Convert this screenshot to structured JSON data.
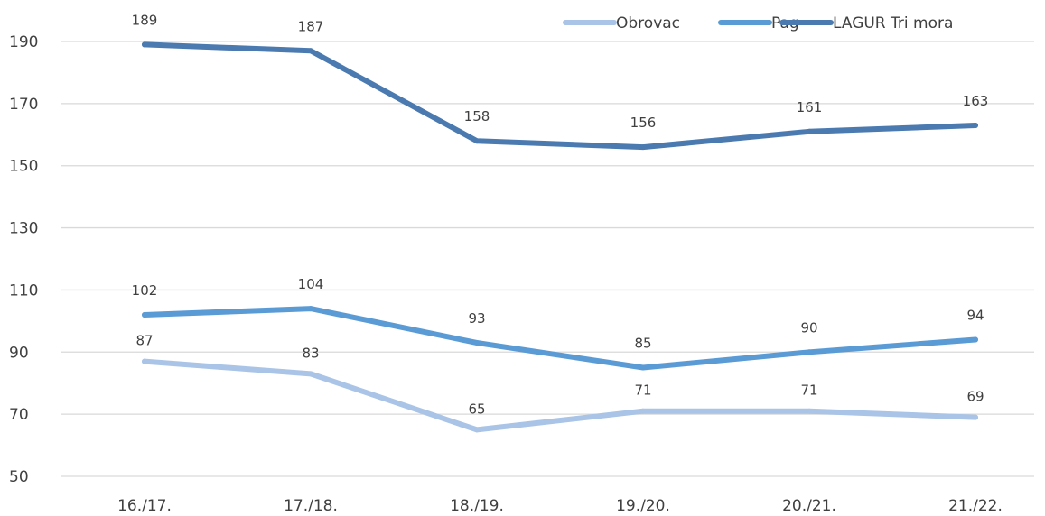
{
  "chart_data": {
    "type": "line",
    "categories": [
      "16./17.",
      "17./18.",
      "18./19.",
      "19./20.",
      "20./21.",
      "21./22."
    ],
    "series": [
      {
        "name": "Obrovac",
        "color": "#a9c4e6",
        "values": [
          87,
          83,
          65,
          71,
          71,
          69
        ]
      },
      {
        "name": "Pag",
        "color": "#5b9bd5",
        "values": [
          102,
          104,
          93,
          85,
          90,
          94
        ]
      },
      {
        "name": "LAGUR Tri mora",
        "color": "#4a7ab0",
        "values": [
          189,
          187,
          158,
          156,
          161,
          163
        ]
      }
    ],
    "yticks": [
      50,
      70,
      90,
      110,
      130,
      150,
      170,
      190
    ],
    "ylim": [
      50,
      190
    ],
    "grid": true,
    "legend_position": "top-right",
    "data_labels": true
  }
}
